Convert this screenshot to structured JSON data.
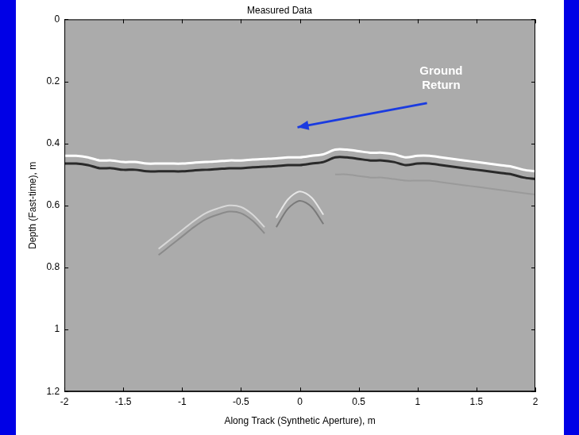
{
  "chart_data": {
    "type": "line",
    "title": "Measured Data",
    "x_label": "Along Track (Synthetic Aperture), m",
    "y_label": "Depth (Fast-time), m",
    "annotations": [
      {
        "text": "Ground Return"
      }
    ],
    "grid": false,
    "xlim": [
      -2,
      2
    ],
    "xticks": [
      -2,
      -1.5,
      -1,
      -0.5,
      0,
      0.5,
      1,
      1.5,
      2
    ],
    "ylim": [
      0,
      1.2
    ],
    "yticks": [
      0,
      0.2,
      0.4,
      0.6,
      0.8,
      1,
      1.2
    ],
    "x": [
      -2,
      -1.9,
      -1.8,
      -1.7,
      -1.6,
      -1.5,
      -1.4,
      -1.3,
      -1.2,
      -1.1,
      -1,
      -0.9,
      -0.8,
      -0.7,
      -0.6,
      -0.5,
      -0.4,
      -0.3,
      -0.2,
      -0.1,
      0,
      0.1,
      0.2,
      0.3,
      0.4,
      0.5,
      0.6,
      0.7,
      0.8,
      0.9,
      1,
      1.1,
      1.2,
      1.3,
      1.4,
      1.5,
      1.6,
      1.7,
      1.8,
      1.9,
      2
    ],
    "series": [
      {
        "color": "#ffffff",
        "values": [
          0.44,
          0.44,
          0.445,
          0.455,
          0.455,
          0.46,
          0.46,
          0.465,
          0.465,
          0.465,
          0.465,
          0.462,
          0.46,
          0.458,
          0.455,
          0.455,
          0.452,
          0.45,
          0.448,
          0.445,
          0.445,
          0.44,
          0.435,
          0.42,
          0.42,
          0.425,
          0.43,
          0.43,
          0.435,
          0.445,
          0.44,
          0.44,
          0.445,
          0.45,
          0.455,
          0.46,
          0.465,
          0.47,
          0.475,
          0.485,
          0.49
        ]
      },
      {
        "color": "#2a2a2a",
        "values": [
          0.465,
          0.465,
          0.47,
          0.48,
          0.48,
          0.485,
          0.485,
          0.49,
          0.49,
          0.49,
          0.49,
          0.487,
          0.485,
          0.483,
          0.48,
          0.48,
          0.477,
          0.475,
          0.473,
          0.47,
          0.47,
          0.465,
          0.46,
          0.445,
          0.445,
          0.45,
          0.455,
          0.455,
          0.46,
          0.47,
          0.465,
          0.465,
          0.47,
          0.475,
          0.48,
          0.485,
          0.49,
          0.495,
          0.5,
          0.51,
          0.515
        ]
      },
      {
        "color": "#d8d8d8",
        "values": [
          null,
          null,
          null,
          null,
          null,
          null,
          null,
          null,
          0.74,
          0.71,
          0.68,
          0.65,
          0.625,
          0.61,
          0.6,
          0.605,
          0.63,
          0.67,
          null,
          null,
          null,
          null,
          null,
          null,
          null,
          null,
          null,
          null,
          null,
          null,
          null,
          null,
          null,
          null,
          null,
          null,
          null,
          null,
          null,
          null,
          null
        ]
      },
      {
        "color": "#8a8a8a",
        "values": [
          null,
          null,
          null,
          null,
          null,
          null,
          null,
          null,
          0.76,
          0.73,
          0.7,
          0.67,
          0.645,
          0.63,
          0.62,
          0.625,
          0.65,
          0.69,
          null,
          null,
          null,
          null,
          null,
          null,
          null,
          null,
          null,
          null,
          null,
          null,
          null,
          null,
          null,
          null,
          null,
          null,
          null,
          null,
          null,
          null,
          null
        ]
      },
      {
        "color": "#e6e6e6",
        "values": [
          null,
          null,
          null,
          null,
          null,
          null,
          null,
          null,
          null,
          null,
          null,
          null,
          null,
          null,
          null,
          null,
          null,
          null,
          0.64,
          0.58,
          0.555,
          0.575,
          0.63,
          null,
          null,
          null,
          null,
          null,
          null,
          null,
          null,
          null,
          null,
          null,
          null,
          null,
          null,
          null,
          null,
          null,
          null
        ]
      },
      {
        "color": "#7a7a7a",
        "values": [
          null,
          null,
          null,
          null,
          null,
          null,
          null,
          null,
          null,
          null,
          null,
          null,
          null,
          null,
          null,
          null,
          null,
          null,
          0.67,
          0.61,
          0.585,
          0.605,
          0.66,
          null,
          null,
          null,
          null,
          null,
          null,
          null,
          null,
          null,
          null,
          null,
          null,
          null,
          null,
          null,
          null,
          null,
          null
        ]
      },
      {
        "color": "#9a9a9a",
        "values": [
          null,
          null,
          null,
          null,
          null,
          null,
          null,
          null,
          null,
          null,
          null,
          null,
          null,
          null,
          null,
          null,
          null,
          null,
          null,
          null,
          null,
          null,
          null,
          0.5,
          0.5,
          0.505,
          0.51,
          0.51,
          0.515,
          0.52,
          0.52,
          0.52,
          0.525,
          0.53,
          0.535,
          0.54,
          0.545,
          0.55,
          0.555,
          0.56,
          0.565
        ]
      }
    ]
  }
}
